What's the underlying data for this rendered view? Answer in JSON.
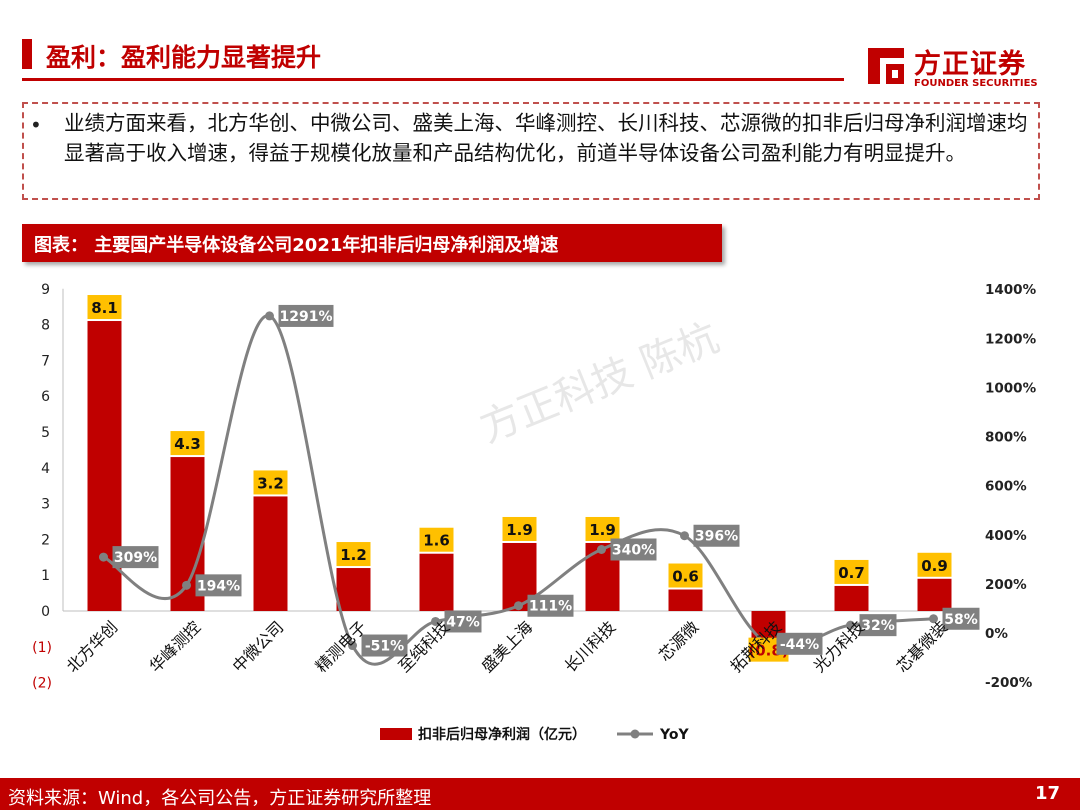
{
  "header": {
    "title": "盈利：盈利能力显著提升"
  },
  "logo": {
    "cn": "方正证券",
    "en": "FOUNDER SECURITIES"
  },
  "bullet": {
    "dot": "•",
    "text": "业绩方面来看，北方华创、中微公司、盛美上海、华峰测控、长川科技、芯源微的扣非后归母净利润增速均显著高于收入增速，得益于规模化放量和产品结构优化，前道半导体设备公司盈利能力有明显提升。"
  },
  "chart_header": "图表：  主要国产半导体设备公司2021年扣非后归母净利润及增速",
  "watermark": "方正科技 陈杭",
  "footer": {
    "source": "资料来源：Wind，各公司公告，方正证券研究所整理",
    "page": "17"
  },
  "colors": {
    "brand": "#c00000",
    "bar": "#c00000",
    "label_bg": "#ffc000",
    "line": "#808080"
  },
  "chart_data": {
    "type": "bar+line",
    "categories": [
      "北方华创",
      "华峰测控",
      "中微公司",
      "精测电子",
      "至纯科技",
      "盛美上海",
      "长川科技",
      "芯源微",
      "拓荆科技",
      "光力科技",
      "芯碁微装"
    ],
    "series": [
      {
        "name": "扣非后归母净利润（亿元）",
        "type": "bar",
        "axis": "left",
        "values": [
          8.1,
          4.3,
          3.2,
          1.2,
          1.6,
          1.9,
          1.9,
          0.6,
          -0.8,
          0.7,
          0.9
        ],
        "labels": [
          "8.1",
          "4.3",
          "3.2",
          "1.2",
          "1.6",
          "1.9",
          "1.9",
          "0.6",
          "(0.8)",
          "0.7",
          "0.9"
        ]
      },
      {
        "name": "YoY",
        "type": "line",
        "axis": "right",
        "values": [
          309,
          194,
          1291,
          -51,
          47,
          111,
          340,
          396,
          -44,
          32,
          58
        ],
        "labels": [
          "309%",
          "194%",
          "1291%",
          "-51%",
          "47%",
          "111%",
          "340%",
          "396%",
          "-44%",
          "32%",
          "58%"
        ]
      }
    ],
    "left_axis": {
      "min": -2,
      "max": 9,
      "ticks": [
        "(2)",
        "(1)",
        "0",
        "1",
        "2",
        "3",
        "4",
        "5",
        "6",
        "7",
        "8",
        "9"
      ],
      "tick_values": [
        -2,
        -1,
        0,
        1,
        2,
        3,
        4,
        5,
        6,
        7,
        8,
        9
      ]
    },
    "right_axis": {
      "min": -200,
      "max": 1400,
      "ticks": [
        "-200%",
        "0%",
        "200%",
        "400%",
        "600%",
        "800%",
        "1000%",
        "1200%",
        "1400%"
      ],
      "tick_values": [
        -200,
        0,
        200,
        400,
        600,
        800,
        1000,
        1200,
        1400
      ]
    },
    "legend": [
      "扣非后归母净利润（亿元）",
      "YoY"
    ],
    "legend_position": "bottom"
  }
}
